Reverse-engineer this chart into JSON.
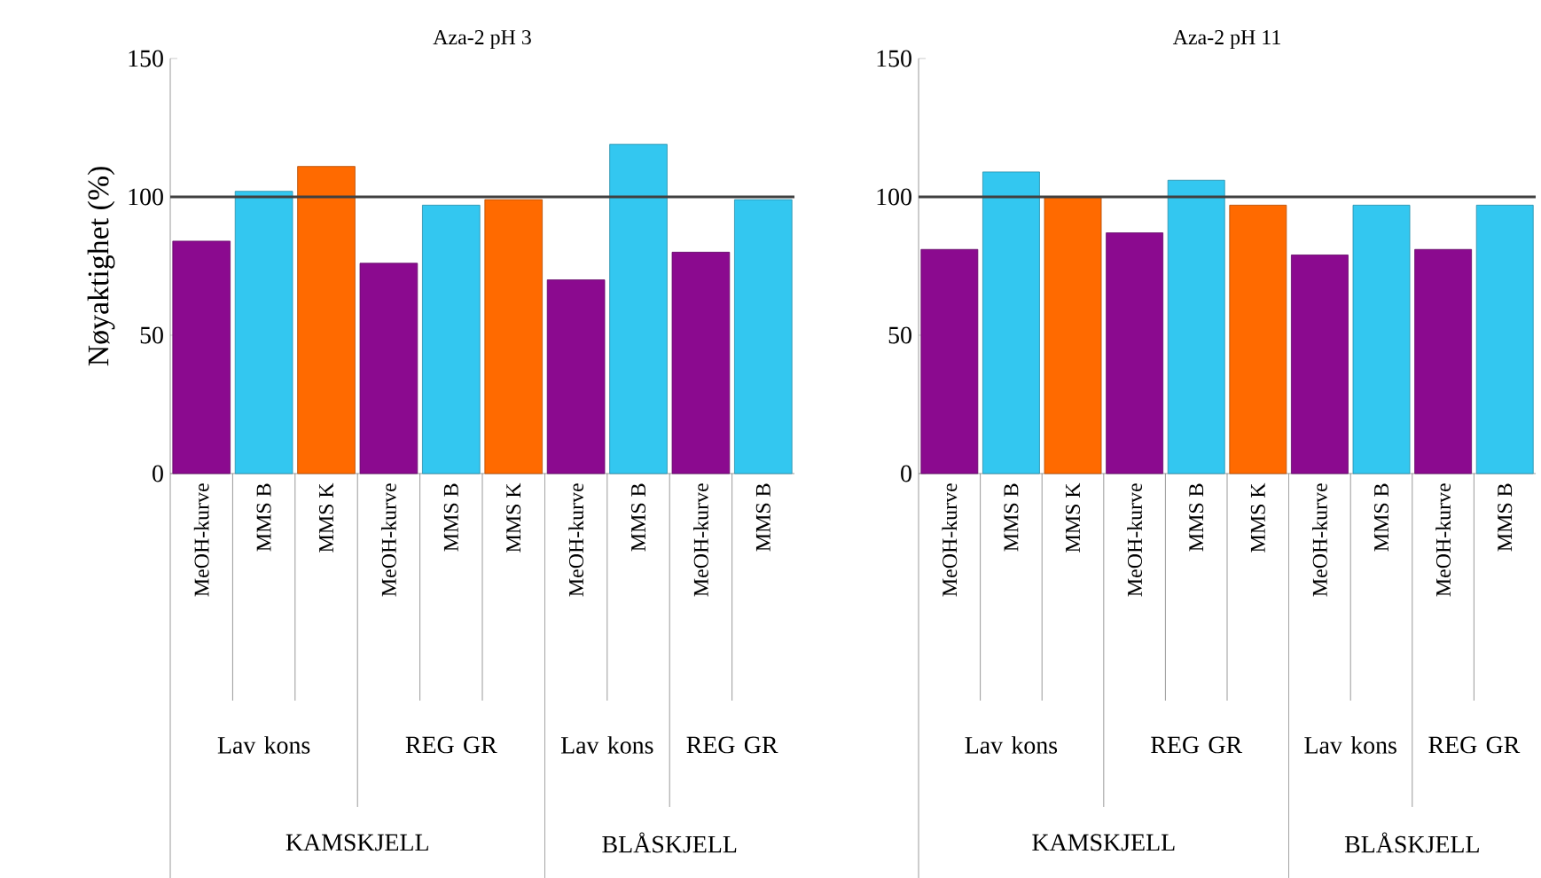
{
  "chart_data": [
    {
      "type": "bar",
      "title": "Aza-2 pH 3",
      "ylabel": "Nøyaktighet (%)",
      "categories": [
        "MeOH-kurve",
        "MMS B",
        "MMS K",
        "MeOH-kurve",
        "MMS B",
        "MMS K",
        "MeOH-kurve",
        "MMS B",
        "MeOH-kurve",
        "MMS B"
      ],
      "values": [
        84,
        102,
        111,
        76,
        97,
        99,
        70,
        119,
        80,
        99
      ],
      "colors": [
        "#8b0a8f",
        "#33c7f0",
        "#ff6a00",
        "#8b0a8f",
        "#33c7f0",
        "#ff6a00",
        "#8b0a8f",
        "#33c7f0",
        "#8b0a8f",
        "#33c7f0"
      ],
      "ylim": [
        0,
        150
      ],
      "yticks": [
        0,
        50,
        100,
        150
      ],
      "ref_lines": [
        {
          "axis": "y",
          "value": 100,
          "color": "#404040"
        }
      ],
      "annotations": [
        "Lav kons",
        "REG GR",
        "Lav kons",
        "REG GR",
        "KAMSKJELL",
        "BLÅSKJELL"
      ]
    },
    {
      "type": "bar",
      "title": "Aza-2 pH 11",
      "categories": [
        "MeOH-kurve",
        "MMS B",
        "MMS K",
        "MeOH-kurve",
        "MMS B",
        "MMS K",
        "MeOH-kurve",
        "MMS B",
        "MeOH-kurve",
        "MMS B"
      ],
      "values": [
        81,
        109,
        100,
        87,
        106,
        97,
        79,
        97,
        81,
        97
      ],
      "colors": [
        "#8b0a8f",
        "#33c7f0",
        "#ff6a00",
        "#8b0a8f",
        "#33c7f0",
        "#ff6a00",
        "#8b0a8f",
        "#33c7f0",
        "#8b0a8f",
        "#33c7f0"
      ],
      "ylim": [
        0,
        150
      ],
      "yticks": [
        0,
        50,
        100,
        150
      ],
      "ref_lines": [
        {
          "axis": "y",
          "value": 100,
          "color": "#404040"
        }
      ],
      "annotations": [
        "Lav kons",
        "REG GR",
        "Lav kons",
        "REG GR",
        "KAMSKJELL",
        "BLÅSKJELL"
      ]
    }
  ]
}
